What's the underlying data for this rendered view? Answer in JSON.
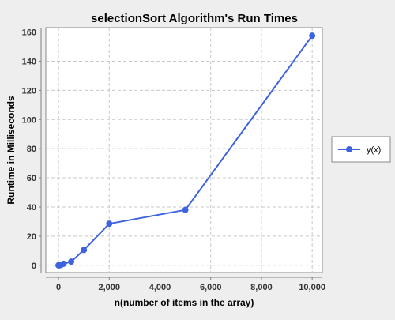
{
  "chart_data": {
    "type": "line",
    "title": "selectionSort Algorithm's Run Times",
    "xlabel": "n(number of items in the array)",
    "ylabel": "Runtime in Milliseconds",
    "xlim": [
      -500,
      10400
    ],
    "ylim": [
      -5,
      163
    ],
    "xticks": [
      0,
      2000,
      4000,
      6000,
      8000,
      10000
    ],
    "xtick_labels": [
      "0",
      "2,000",
      "4,000",
      "6,000",
      "8,000",
      "10,000"
    ],
    "yticks": [
      0,
      20,
      40,
      60,
      80,
      100,
      120,
      140,
      160
    ],
    "ytick_labels": [
      "0",
      "20",
      "40",
      "60",
      "80",
      "100",
      "120",
      "140",
      "160"
    ],
    "grid": true,
    "legend_position": "right",
    "series": [
      {
        "name": "y(x)",
        "color": "#3d63e0",
        "x": [
          1,
          10,
          50,
          100,
          200,
          500,
          1000,
          2000,
          5000,
          10000
        ],
        "y": [
          0,
          0,
          0,
          0.3,
          1,
          2.5,
          10.5,
          28.5,
          38,
          157.5
        ]
      }
    ]
  }
}
